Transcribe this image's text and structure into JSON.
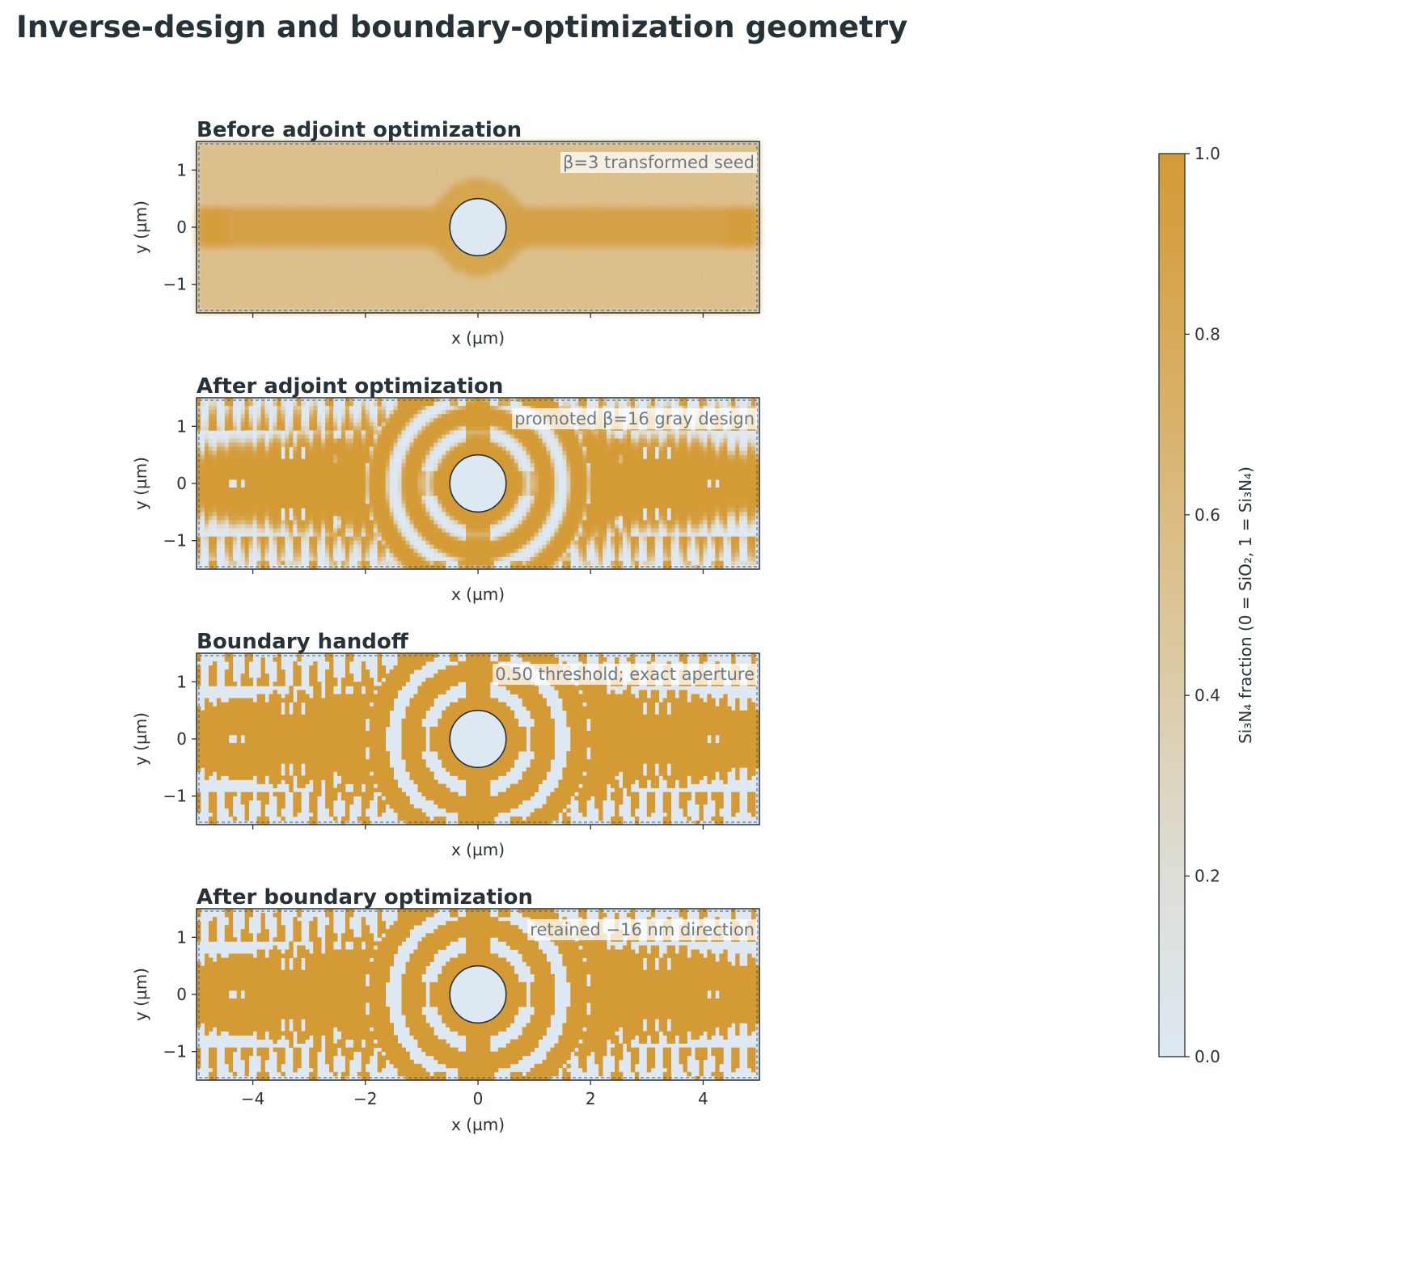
{
  "figure": {
    "title": "Inverse-design and boundary-optimization geometry"
  },
  "colors": {
    "sio2": "#dde8f2",
    "si3n4": "#d49a35",
    "axis": "#263238",
    "annotation_text": "#6b7a83"
  },
  "chart_data": [
    {
      "type": "heatmap",
      "title": "Before adjoint optimization",
      "annotation": "β=3 transformed seed",
      "xlabel": "x (µm)",
      "ylabel": "y (µm)",
      "xlim": [
        -5,
        5
      ],
      "ylim": [
        -1.5,
        1.5
      ],
      "yticks": [
        1,
        0,
        -1
      ],
      "ytick_labels": [
        "1",
        "0",
        "−1"
      ],
      "xticks": [
        -4,
        -2,
        0,
        2,
        4
      ],
      "xtick_labels": [],
      "aperture_center": [
        0,
        0
      ],
      "aperture_radius": 0.5,
      "pattern": "seed"
    },
    {
      "type": "heatmap",
      "title": "After adjoint optimization",
      "annotation": "promoted β=16 gray design",
      "xlabel": "x (µm)",
      "ylabel": "y (µm)",
      "xlim": [
        -5,
        5
      ],
      "ylim": [
        -1.5,
        1.5
      ],
      "yticks": [
        1,
        0,
        -1
      ],
      "ytick_labels": [
        "1",
        "0",
        "−1"
      ],
      "xticks": [
        -4,
        -2,
        0,
        2,
        4
      ],
      "xtick_labels": [],
      "aperture_center": [
        0,
        0
      ],
      "aperture_radius": 0.5,
      "pattern": "gray"
    },
    {
      "type": "heatmap",
      "title": "Boundary handoff",
      "annotation": "0.50 threshold; exact aperture",
      "xlabel": "x (µm)",
      "ylabel": "y (µm)",
      "xlim": [
        -5,
        5
      ],
      "ylim": [
        -1.5,
        1.5
      ],
      "yticks": [
        1,
        0,
        -1
      ],
      "ytick_labels": [
        "1",
        "0",
        "−1"
      ],
      "xticks": [
        -4,
        -2,
        0,
        2,
        4
      ],
      "xtick_labels": [],
      "aperture_center": [
        0,
        0
      ],
      "aperture_radius": 0.5,
      "pattern": "binary"
    },
    {
      "type": "heatmap",
      "title": "After boundary optimization",
      "annotation": "retained −16 nm direction",
      "xlabel": "x (µm)",
      "ylabel": "y (µm)",
      "xlim": [
        -5,
        5
      ],
      "ylim": [
        -1.5,
        1.5
      ],
      "yticks": [
        1,
        0,
        -1
      ],
      "ytick_labels": [
        "1",
        "0",
        "−1"
      ],
      "xticks": [
        -4,
        -2,
        0,
        2,
        4
      ],
      "xtick_labels": [
        "−4",
        "−2",
        "0",
        "2",
        "4"
      ],
      "aperture_center": [
        0,
        0
      ],
      "aperture_radius": 0.5,
      "pattern": "binary"
    }
  ],
  "colorbar": {
    "label": "Si₃N₄ fraction (0 = SiO₂, 1 = Si₃N₄)",
    "range": [
      0,
      1
    ],
    "ticks": [
      1.0,
      0.8,
      0.6,
      0.4,
      0.2,
      0.0
    ],
    "tick_labels": [
      "1.0",
      "0.8",
      "0.6",
      "0.4",
      "0.2",
      "0.0"
    ]
  }
}
